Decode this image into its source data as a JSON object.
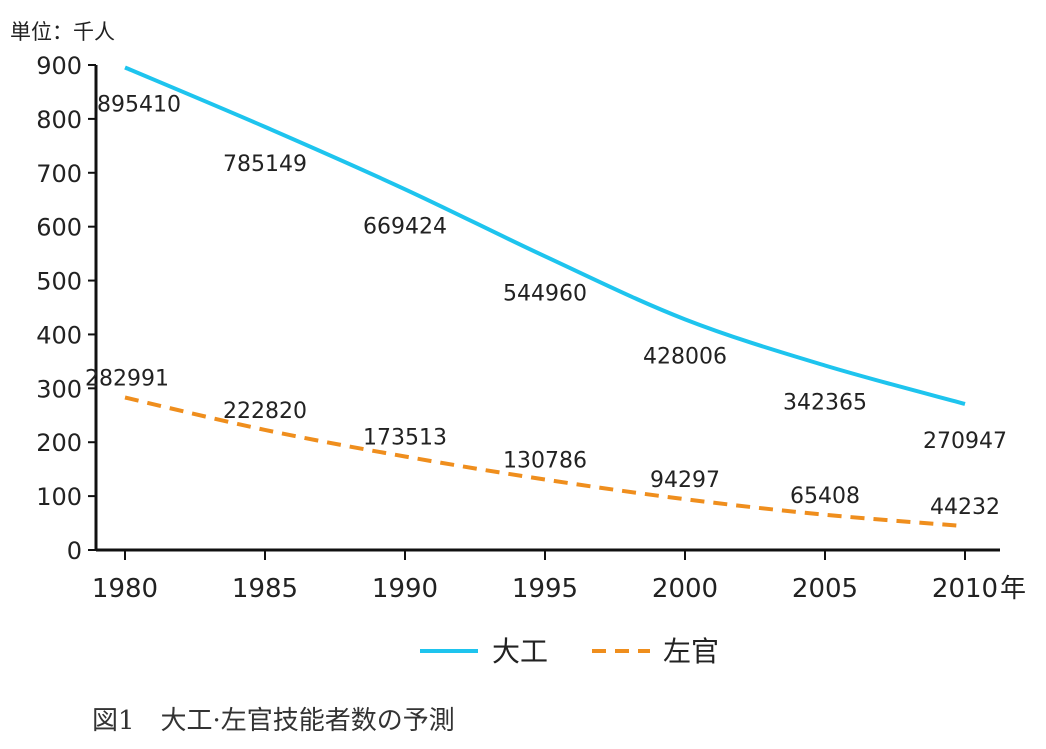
{
  "chart_data": {
    "type": "line",
    "unit_label": "単位：千人",
    "x": [
      1980,
      1985,
      1990,
      1995,
      2000,
      2005,
      2010
    ],
    "x_tick_labels": [
      "1980",
      "1985",
      "1990",
      "1995",
      "2000",
      "2005",
      "2010"
    ],
    "x_unit": "年",
    "y_ticks": [
      "0",
      "100",
      "200",
      "300",
      "400",
      "500",
      "600",
      "700",
      "800",
      "900"
    ],
    "ylim": [
      0,
      900
    ],
    "grid": false,
    "legend_position": "bottom",
    "series": [
      {
        "name": "大工",
        "color": "#1ec4ee",
        "style": "solid",
        "values": [
          895.41,
          785.149,
          669.424,
          544.96,
          428.006,
          342.365,
          270.947
        ],
        "labels": [
          "895410",
          "785149",
          "669424",
          "544960",
          "428006",
          "342365",
          "270947"
        ]
      },
      {
        "name": "左官",
        "color": "#ef8e1d",
        "style": "dashed",
        "values": [
          282.991,
          222.82,
          173.513,
          130.786,
          94.297,
          65.408,
          44.232
        ],
        "labels": [
          "282991",
          "222820",
          "173513",
          "130786",
          "94297",
          "65408",
          "44232"
        ]
      }
    ]
  },
  "caption": "図1　大工·左官技能者数の予測"
}
